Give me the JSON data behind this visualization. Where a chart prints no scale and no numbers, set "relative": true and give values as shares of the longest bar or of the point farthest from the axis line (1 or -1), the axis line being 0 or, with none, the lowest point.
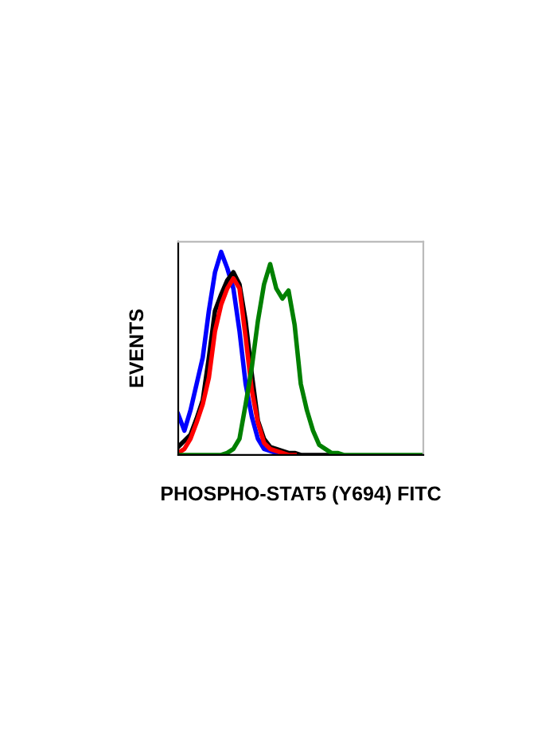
{
  "chart_data": {
    "type": "line",
    "relative": true,
    "xlabel": "PHOSPHO-STAT5 (Y694) FITC",
    "ylabel": "EVENTS",
    "tick_labels": false,
    "marker": "none",
    "line_style": "solid",
    "categories": [
      null,
      null,
      null,
      null,
      null,
      null,
      null,
      null,
      null,
      null,
      null,
      null,
      null,
      null,
      null,
      null,
      null,
      null,
      null,
      null,
      null,
      null,
      null,
      null,
      null,
      null,
      null,
      null,
      null,
      null,
      null,
      null,
      null,
      null,
      null,
      null,
      null,
      null,
      null,
      null,
      null
    ],
    "series": [
      {
        "color": "#0000ff",
        "values": [
          0.2,
          0.12,
          0.22,
          0.35,
          0.48,
          0.71,
          0.9,
          1.0,
          0.92,
          0.82,
          0.61,
          0.35,
          0.19,
          0.08,
          0.03,
          0.02,
          0.01,
          null,
          null,
          null,
          null,
          null,
          null,
          null,
          null,
          null,
          null,
          null,
          null,
          null,
          null,
          null,
          null,
          null,
          null,
          null,
          null,
          null,
          null,
          null,
          null
        ]
      },
      {
        "color": "#000000",
        "values": [
          0.04,
          0.07,
          0.1,
          0.18,
          0.27,
          0.48,
          0.71,
          0.79,
          0.86,
          0.9,
          0.84,
          0.66,
          0.4,
          0.17,
          0.08,
          0.04,
          0.03,
          0.02,
          0.01,
          0.01,
          0,
          0,
          0,
          0,
          0,
          0,
          0,
          null,
          null,
          null,
          null,
          null,
          null,
          null,
          null,
          null,
          null,
          null,
          null,
          null,
          null
        ]
      },
      {
        "color": "#ff0000",
        "values": [
          0.01,
          0.03,
          0.08,
          0.16,
          0.25,
          0.38,
          0.61,
          0.74,
          0.82,
          0.87,
          0.82,
          0.58,
          0.32,
          0.16,
          0.06,
          0.03,
          0.02,
          0.01,
          0,
          0,
          null,
          null,
          null,
          null,
          null,
          null,
          null,
          null,
          null,
          null,
          null,
          null,
          null,
          null,
          null,
          null,
          null,
          null,
          null,
          null,
          null
        ]
      },
      {
        "color": "#008000",
        "values": [
          0,
          0,
          0,
          0,
          0,
          0,
          0,
          0,
          0.01,
          0.03,
          0.08,
          0.25,
          0.43,
          0.66,
          0.84,
          0.94,
          0.82,
          0.77,
          0.81,
          0.64,
          0.35,
          0.22,
          0.12,
          0.05,
          0.03,
          0.01,
          0.01,
          0,
          0,
          0,
          0,
          0,
          0,
          0,
          0,
          0,
          0,
          0,
          0,
          0,
          0
        ]
      }
    ]
  }
}
